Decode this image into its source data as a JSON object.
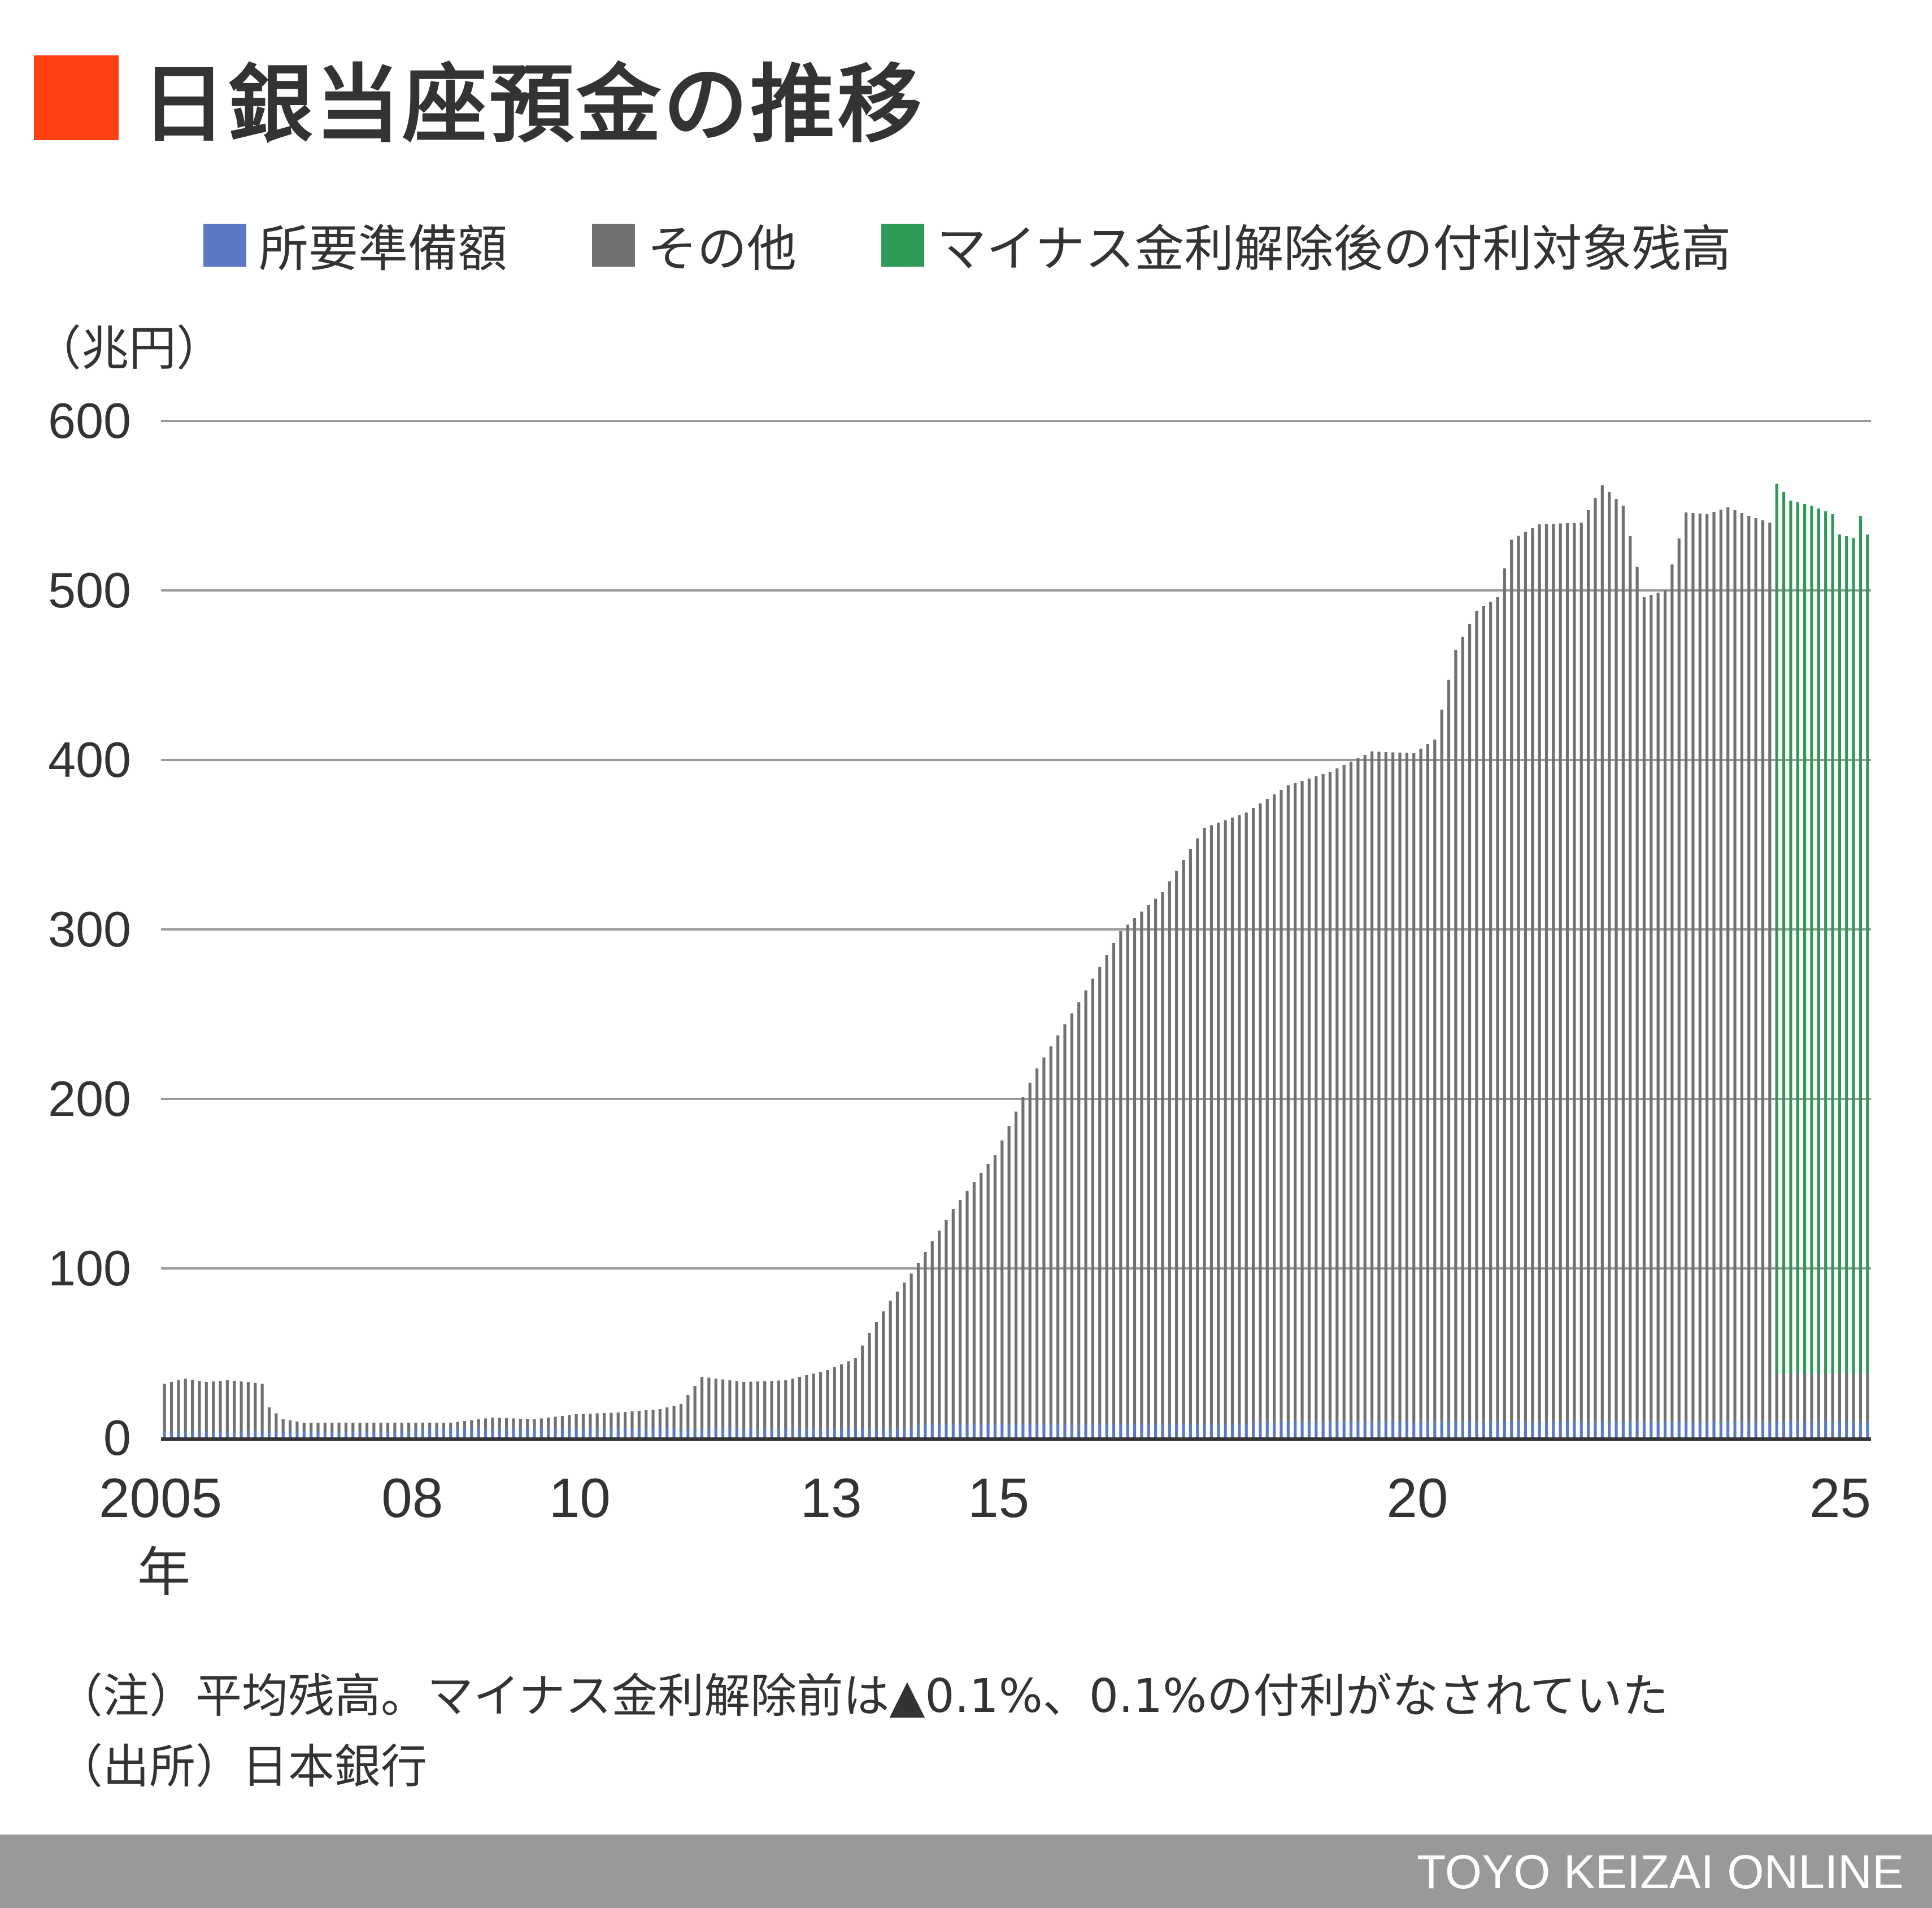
{
  "title": "日銀当座預金の推移",
  "colors": {
    "title_square": "#ff4013",
    "required_reserves": "#5c79c4",
    "other": "#707070",
    "interest_bearing": "#2e9a55",
    "gridline": "#999999",
    "axis": "#333333",
    "footer_bar": "#999999"
  },
  "legend": [
    {
      "label": "所要準備額",
      "color": "#5c79c4"
    },
    {
      "label": "その他",
      "color": "#707070"
    },
    {
      "label": "マイナス金利解除後の付利対象残高",
      "color": "#2e9a55"
    }
  ],
  "unit_label": "（兆円）",
  "notes": {
    "note": "（注）平均残高。マイナス金利解除前は▲0.1%、0.1%の付利がなされていた",
    "source": "（出所）日本銀行"
  },
  "brand": "TOYO KEIZAI ONLINE",
  "chart_data": {
    "type": "bar",
    "stacked": true,
    "frequency": "monthly",
    "x_start": "2005-01",
    "x_end": "2025-05",
    "x_tick_labels": [
      {
        "year": 2005,
        "label": "2005"
      },
      {
        "year": 2008,
        "label": "08"
      },
      {
        "year": 2010,
        "label": "10"
      },
      {
        "year": 2013,
        "label": "13"
      },
      {
        "year": 2015,
        "label": "15"
      },
      {
        "year": 2020,
        "label": "20"
      },
      {
        "year": 2025,
        "label": "25"
      }
    ],
    "x_unit_label": "年",
    "y_ticks": [
      0,
      100,
      200,
      300,
      400,
      500,
      600
    ],
    "ylim": [
      0,
      600
    ],
    "grid": true,
    "legend_position": "top",
    "series": [
      {
        "name": "所要準備額",
        "color": "#5c79c4",
        "note": "approx. 4 (2005–2007), 6 (2008–2013), 8 (2014–2017), 10 (2018–2025)"
      },
      {
        "name": "その他",
        "color": "#707070"
      },
      {
        "name": "マイナス金利解除後の付利対象残高",
        "color": "#2e9a55",
        "from": "2024-04"
      }
    ],
    "totals_anchor_points": [
      [
        "2005-01",
        32
      ],
      [
        "2005-04",
        35
      ],
      [
        "2005-07",
        33
      ],
      [
        "2005-10",
        34
      ],
      [
        "2006-01",
        33
      ],
      [
        "2006-03",
        32
      ],
      [
        "2006-04",
        18
      ],
      [
        "2006-06",
        11
      ],
      [
        "2006-09",
        9
      ],
      [
        "2007-01",
        9
      ],
      [
        "2007-06",
        9
      ],
      [
        "2008-01",
        9
      ],
      [
        "2008-06",
        9
      ],
      [
        "2008-12",
        12
      ],
      [
        "2009-06",
        11
      ],
      [
        "2009-12",
        14
      ],
      [
        "2010-06",
        15
      ],
      [
        "2010-12",
        17
      ],
      [
        "2011-03",
        20
      ],
      [
        "2011-06",
        36
      ],
      [
        "2011-12",
        33
      ],
      [
        "2012-06",
        34
      ],
      [
        "2012-12",
        40
      ],
      [
        "2013-04",
        47
      ],
      [
        "2013-06",
        62
      ],
      [
        "2013-09",
        81
      ],
      [
        "2013-12",
        97
      ],
      [
        "2014-06",
        135
      ],
      [
        "2014-12",
        167
      ],
      [
        "2015-06",
        218
      ],
      [
        "2015-12",
        257
      ],
      [
        "2016-06",
        299
      ],
      [
        "2016-12",
        322
      ],
      [
        "2017-06",
        360
      ],
      [
        "2017-12",
        369
      ],
      [
        "2018-06",
        385
      ],
      [
        "2018-12",
        393
      ],
      [
        "2019-06",
        405
      ],
      [
        "2019-12",
        404
      ],
      [
        "2020-03",
        412
      ],
      [
        "2020-06",
        465
      ],
      [
        "2020-09",
        488
      ],
      [
        "2020-12",
        496
      ],
      [
        "2021-02",
        530
      ],
      [
        "2021-06",
        539
      ],
      [
        "2021-12",
        540
      ],
      [
        "2022-03",
        562
      ],
      [
        "2022-06",
        550
      ],
      [
        "2022-09",
        496
      ],
      [
        "2022-12",
        500
      ],
      [
        "2023-03",
        546
      ],
      [
        "2023-06",
        545
      ],
      [
        "2023-09",
        549
      ],
      [
        "2023-12",
        544
      ],
      [
        "2024-03",
        540
      ],
      [
        "2024-04",
        563
      ],
      [
        "2024-06",
        553
      ],
      [
        "2024-09",
        550
      ],
      [
        "2024-12",
        545
      ],
      [
        "2025-01",
        533
      ],
      [
        "2025-03",
        531
      ],
      [
        "2025-04",
        544
      ],
      [
        "2025-05",
        533
      ]
    ]
  }
}
